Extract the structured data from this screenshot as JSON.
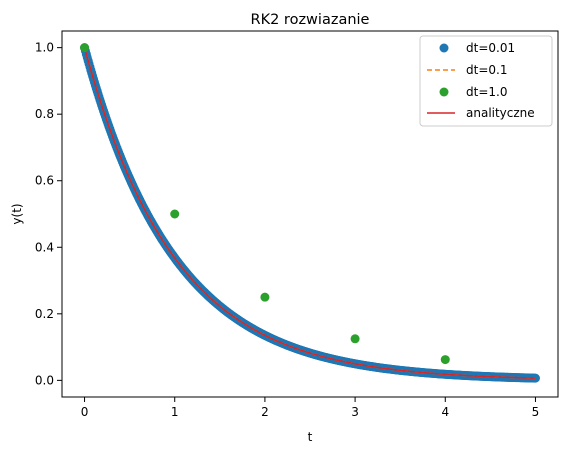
{
  "chart_data": {
    "type": "scatter",
    "title": "RK2 rozwiazanie",
    "xlabel": "t",
    "ylabel": "y(t)",
    "xlim": [
      -0.25,
      5.25
    ],
    "ylim": [
      -0.05,
      1.05
    ],
    "xticks": [
      0,
      1,
      2,
      3,
      4,
      5
    ],
    "xtick_labels": [
      "0",
      "1",
      "2",
      "3",
      "4",
      "5"
    ],
    "yticks": [
      0.0,
      0.2,
      0.4,
      0.6,
      0.8,
      1.0
    ],
    "ytick_labels": [
      "0.0",
      "0.2",
      "0.4",
      "0.6",
      "0.8",
      "1.0"
    ],
    "grid": false,
    "legend_position": "top-right",
    "series": [
      {
        "name": "dt=0.01",
        "style": "markers",
        "color": "#1f77b4",
        "x_start": 0,
        "x_end": 5,
        "x_step": 0.01,
        "formula": "y = exp(-t)",
        "x": [
          0,
          0.5,
          1,
          1.5,
          2,
          2.5,
          3,
          3.5,
          4,
          4.5,
          5
        ],
        "y": [
          1.0,
          0.607,
          0.368,
          0.223,
          0.135,
          0.082,
          0.05,
          0.03,
          0.018,
          0.011,
          0.007
        ]
      },
      {
        "name": "dt=0.1",
        "style": "dashed-line",
        "color": "#ff7f0e",
        "x": [
          0,
          0.5,
          1,
          1.5,
          2,
          2.5,
          3,
          3.5,
          4,
          4.5,
          5
        ],
        "y": [
          1.0,
          0.607,
          0.368,
          0.223,
          0.135,
          0.082,
          0.05,
          0.03,
          0.018,
          0.011,
          0.007
        ]
      },
      {
        "name": "dt=1.0",
        "style": "markers",
        "color": "#2ca02c",
        "x": [
          0,
          1,
          2,
          3,
          4
        ],
        "y": [
          1.0,
          0.5,
          0.25,
          0.125,
          0.0625
        ]
      },
      {
        "name": "analityczne",
        "style": "solid-line",
        "color": "#d62728",
        "formula": "y = exp(-t)",
        "x": [
          0,
          0.5,
          1,
          1.5,
          2,
          2.5,
          3,
          3.5,
          4,
          4.5,
          5
        ],
        "y": [
          1.0,
          0.607,
          0.368,
          0.223,
          0.135,
          0.082,
          0.05,
          0.03,
          0.018,
          0.011,
          0.007
        ]
      }
    ]
  }
}
